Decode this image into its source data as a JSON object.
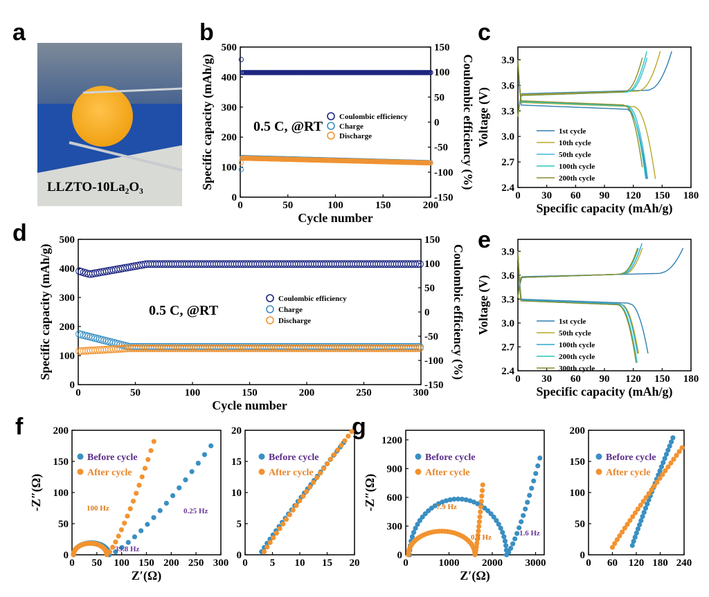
{
  "panel_labels": [
    "a",
    "b",
    "c",
    "d",
    "e",
    "f",
    "g"
  ],
  "photo": {
    "caption": "LLZTO-10La₂O₃"
  },
  "colors": {
    "coulombic": "#1a237e",
    "charge": "#3a8fc2",
    "discharge": "#f29330",
    "before": "#3a8fc2",
    "after": "#f29330",
    "purple": "#6a3a9a",
    "orange_text": "#e07a18"
  },
  "chart_data": [
    {
      "id": "b",
      "type": "scatter",
      "xlabel": "Cycle number",
      "ylabel": "Specific capacity (mAh/g)",
      "y2label": "Coulombic efficiency (%)",
      "xlim": [
        0,
        200
      ],
      "ylim": [
        0,
        500
      ],
      "y2lim": [
        -150,
        150
      ],
      "xticks": [
        0,
        50,
        100,
        150,
        200
      ],
      "yticks": [
        0,
        100,
        200,
        300,
        400,
        500
      ],
      "y2ticks": [
        -150,
        -100,
        -50,
        0,
        50,
        100,
        150
      ],
      "annotation": "0.5 C, @RT",
      "legend": [
        "Coulombic efficiency",
        "Charge",
        "Discharge"
      ],
      "series": [
        {
          "name": "Coulombic efficiency",
          "axis": "y2",
          "x_range": [
            1,
            200
          ],
          "start": 125,
          "values_end": [
            99,
            99
          ]
        },
        {
          "name": "Charge",
          "axis": "y",
          "x_range": [
            1,
            200
          ],
          "start": 92,
          "values_end": [
            132,
            115
          ]
        },
        {
          "name": "Discharge",
          "axis": "y",
          "x_range": [
            1,
            200
          ],
          "start": 115,
          "values_end": [
            130,
            114
          ]
        }
      ]
    },
    {
      "id": "c",
      "type": "line",
      "xlabel": "Specific capacity (mAh/g)",
      "ylabel": "Voltage (V)",
      "xlim": [
        0,
        180
      ],
      "ylim": [
        2.4,
        4.05
      ],
      "xticks": [
        0,
        30,
        60,
        90,
        120,
        150,
        180
      ],
      "yticks": [
        2.4,
        2.7,
        3.0,
        3.3,
        3.6,
        3.9
      ],
      "legend": [
        "1st cycle",
        "10th cycle",
        "50th cycle",
        "100th cycle",
        "200th cycle"
      ],
      "series": [
        {
          "name": "1st cycle",
          "charge_plateau": 3.5,
          "charge_end": 160,
          "discharge_plateau": 3.37,
          "discharge_end": 134
        },
        {
          "name": "10th cycle",
          "charge_plateau": 3.49,
          "charge_end": 148,
          "discharge_plateau": 3.4,
          "discharge_end": 143
        },
        {
          "name": "50th cycle",
          "charge_plateau": 3.48,
          "charge_end": 136,
          "discharge_plateau": 3.41,
          "discharge_end": 135
        },
        {
          "name": "100th cycle",
          "charge_plateau": 3.48,
          "charge_end": 134,
          "discharge_plateau": 3.41,
          "discharge_end": 133
        },
        {
          "name": "200th cycle",
          "charge_plateau": 3.48,
          "charge_end": 131,
          "discharge_plateau": 3.42,
          "discharge_end": 131
        }
      ]
    },
    {
      "id": "d",
      "type": "scatter",
      "xlabel": "Cycle number",
      "ylabel": "Specific capacity (mAh/g)",
      "y2label": "Coulombic efficiency (%)",
      "xlim": [
        0,
        300
      ],
      "ylim": [
        0,
        500
      ],
      "y2lim": [
        -150,
        150
      ],
      "xticks": [
        0,
        50,
        100,
        150,
        200,
        250,
        300
      ],
      "yticks": [
        0,
        100,
        200,
        300,
        400,
        500
      ],
      "y2ticks": [
        -150,
        -100,
        -50,
        0,
        50,
        100,
        150
      ],
      "annotation": "0.5 C, @RT",
      "legend": [
        "Coulombic efficiency",
        "Charge",
        "Discharge"
      ],
      "series": [
        {
          "name": "Coulombic efficiency",
          "axis": "y2",
          "x_range": [
            1,
            300
          ],
          "start": 85,
          "dip": 78,
          "plateau": 99
        },
        {
          "name": "Charge",
          "axis": "y",
          "x_range": [
            1,
            300
          ],
          "start": 175,
          "plateau": 130
        },
        {
          "name": "Discharge",
          "axis": "y",
          "x_range": [
            1,
            300
          ],
          "start": 115,
          "plateau": 125
        }
      ]
    },
    {
      "id": "e",
      "type": "line",
      "xlabel": "Specific capacity (mAh/g)",
      "ylabel": "Voltage (V)",
      "xlim": [
        0,
        180
      ],
      "ylim": [
        2.4,
        4.05
      ],
      "xticks": [
        0,
        30,
        60,
        90,
        120,
        150,
        180
      ],
      "yticks": [
        2.4,
        2.7,
        3.0,
        3.3,
        3.6,
        3.9
      ],
      "legend": [
        "1st cycle",
        "50th cycle",
        "100th cycle",
        "200th cycle",
        "300th cycle"
      ],
      "series": [
        {
          "name": "1st cycle",
          "charge_plateau": 3.58,
          "charge_end": 174,
          "discharge_plateau": 3.3,
          "discharge_end": 137
        },
        {
          "name": "50th cycle",
          "charge_plateau": 3.57,
          "charge_end": 131,
          "discharge_plateau": 3.29,
          "discharge_end": 127
        },
        {
          "name": "100th cycle",
          "charge_plateau": 3.57,
          "charge_end": 129,
          "discharge_plateau": 3.29,
          "discharge_end": 126
        },
        {
          "name": "200th cycle",
          "charge_plateau": 3.57,
          "charge_end": 127,
          "discharge_plateau": 3.28,
          "discharge_end": 124
        },
        {
          "name": "300th cycle",
          "charge_plateau": 3.57,
          "charge_end": 126,
          "discharge_plateau": 3.28,
          "discharge_end": 123
        }
      ]
    },
    {
      "id": "f",
      "type": "scatter",
      "xlabel": "Z′(Ω)",
      "ylabel": "-Z″(Ω)",
      "xlim": [
        0,
        300
      ],
      "ylim": [
        0,
        200
      ],
      "xticks": [
        0,
        50,
        100,
        150,
        200,
        250,
        300
      ],
      "yticks": [
        0,
        50,
        100,
        150,
        200
      ],
      "legend": [
        "Before cycle",
        "After cycle"
      ],
      "annotations": [
        "100 Hz",
        "39.8 Hz",
        "0.25 Hz"
      ],
      "series": [
        {
          "name": "Before cycle",
          "semicircle": [
            3,
            75
          ],
          "tail_end": [
            280,
            175
          ]
        },
        {
          "name": "After cycle",
          "semicircle": [
            3,
            70
          ],
          "tail_end": [
            165,
            182
          ]
        }
      ]
    },
    {
      "id": "f_inset",
      "type": "scatter",
      "xlim": [
        0,
        20
      ],
      "ylim": [
        0,
        20
      ],
      "xticks": [
        0,
        5,
        10,
        15,
        20
      ],
      "yticks": [
        0,
        5,
        10,
        15,
        20
      ],
      "legend": [
        "Before cycle",
        "After cycle"
      ],
      "series": [
        {
          "name": "Before cycle",
          "start": [
            3,
            0.5
          ],
          "end": [
            18,
            18
          ]
        },
        {
          "name": "After cycle",
          "start": [
            3.5,
            0.5
          ],
          "end": [
            19.5,
            19.8
          ]
        }
      ]
    },
    {
      "id": "g",
      "type": "scatter",
      "xlabel": "Z′(Ω)",
      "ylabel": "-Z″(Ω)",
      "xlim": [
        0,
        3200
      ],
      "ylim": [
        0,
        1300
      ],
      "xticks": [
        0,
        1000,
        2000,
        3000
      ],
      "yticks": [
        0,
        300,
        600,
        900,
        1200
      ],
      "legend": [
        "Before cycle",
        "After cycle"
      ],
      "annotations": [
        "7.9 Hz",
        "0.3 Hz",
        "1.6 Hz"
      ],
      "series": [
        {
          "name": "Before cycle",
          "semicircle": [
            90,
            2330
          ],
          "tail_end": [
            3100,
            1010
          ]
        },
        {
          "name": "After cycle",
          "semicircle": [
            60,
            1600
          ],
          "tail_end": [
            1780,
            730
          ]
        }
      ]
    },
    {
      "id": "g_inset",
      "type": "scatter",
      "xlim": [
        0,
        240
      ],
      "ylim": [
        0,
        200
      ],
      "xticks": [
        0,
        60,
        120,
        180,
        240
      ],
      "yticks": [
        0,
        50,
        100,
        150,
        200
      ],
      "legend": [
        "Before cycle",
        "After cycle"
      ],
      "series": [
        {
          "name": "Before cycle",
          "start": [
            110,
            15
          ],
          "end": [
            212,
            188
          ]
        },
        {
          "name": "After cycle",
          "start": [
            60,
            12
          ],
          "end": [
            235,
            172
          ]
        }
      ]
    }
  ]
}
